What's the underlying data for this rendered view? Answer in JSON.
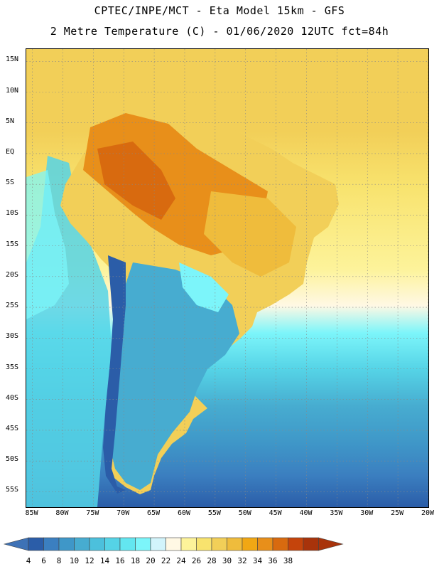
{
  "header": {
    "line1": "CPTEC/INPE/MCT -  Eta Model 15km - GFS",
    "line2": "2 Metre Temperature (C) - 01/06/2020 12UTC fct=84h"
  },
  "map": {
    "lat_labels": [
      "15N",
      "10N",
      "5N",
      "EQ",
      "5S",
      "10S",
      "15S",
      "20S",
      "25S",
      "30S",
      "35S",
      "40S",
      "45S",
      "50S",
      "55S"
    ],
    "lon_labels": [
      "85W",
      "80W",
      "75W",
      "70W",
      "65W",
      "60W",
      "55W",
      "50W",
      "45W",
      "40W",
      "35W",
      "30W",
      "25W",
      "20W"
    ],
    "lat_range": [
      17,
      -57.5
    ],
    "lon_range": [
      -86,
      -20
    ]
  },
  "colorbar": {
    "levels": [
      "4",
      "6",
      "8",
      "10",
      "12",
      "14",
      "16",
      "18",
      "20",
      "22",
      "24",
      "26",
      "28",
      "30",
      "32",
      "34",
      "36",
      "38"
    ],
    "colors": [
      "#2b5da8",
      "#3b7fc0",
      "#3f97c8",
      "#47acd0",
      "#4cc0dc",
      "#55d3e6",
      "#63e6f0",
      "#7cf5fa",
      "#d2f4fb",
      "#fff8e4",
      "#fdf39a",
      "#f8e36e",
      "#f2cf58",
      "#efbc3c",
      "#f1a714",
      "#e88f1a",
      "#d86a0f",
      "#c5440b",
      "#a8330b",
      "#3e72b6"
    ]
  }
}
